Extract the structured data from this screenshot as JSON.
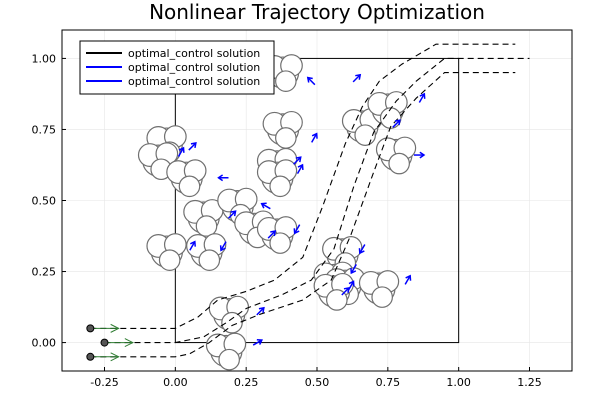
{
  "chart_data": {
    "type": "line",
    "title": "Nonlinear Trajectory Optimization",
    "xlim": [
      -0.4,
      1.4
    ],
    "ylim": [
      -0.1,
      1.1
    ],
    "x_ticks": [
      -0.25,
      0.0,
      0.25,
      0.5,
      0.75,
      1.0,
      1.25
    ],
    "x_tick_labels": [
      "-0.25",
      "0.00",
      "0.25",
      "0.50",
      "0.75",
      "1.00",
      "1.25"
    ],
    "y_ticks": [
      0.0,
      0.25,
      0.5,
      0.75,
      1.0
    ],
    "y_tick_labels": [
      "0.00",
      "0.25",
      "0.50",
      "0.75",
      "1.00"
    ],
    "grid": true,
    "legend_position": "top-left",
    "box": [
      [
        0,
        0
      ],
      [
        1,
        1
      ]
    ],
    "series": [
      {
        "name": "optimal_control solution",
        "color": "#000000",
        "x": [],
        "y": []
      },
      {
        "name": "optimal_control solution",
        "color": "#0000ff",
        "x": [],
        "y": []
      },
      {
        "name": "optimal_control solution",
        "color": "#0000ff",
        "x": [],
        "y": []
      }
    ],
    "trajectories": [
      {
        "x": [
          -0.3,
          0.0,
          0.05,
          0.12,
          0.2,
          0.3,
          0.45,
          0.55,
          0.62,
          0.7,
          0.76,
          0.85,
          0.95,
          1.2
        ],
        "y": [
          -0.05,
          -0.05,
          -0.04,
          0.0,
          0.06,
          0.1,
          0.15,
          0.22,
          0.38,
          0.6,
          0.76,
          0.86,
          0.95,
          0.95
        ]
      },
      {
        "x": [
          -0.25,
          0.0,
          0.1,
          0.18,
          0.25,
          0.38,
          0.48,
          0.56,
          0.63,
          0.7,
          0.78,
          0.85,
          0.95,
          1.25
        ],
        "y": [
          0.0,
          0.0,
          0.02,
          0.07,
          0.12,
          0.17,
          0.22,
          0.33,
          0.55,
          0.74,
          0.85,
          0.92,
          1.0,
          1.0
        ]
      },
      {
        "x": [
          -0.3,
          0.0,
          0.08,
          0.15,
          0.25,
          0.35,
          0.45,
          0.52,
          0.6,
          0.66,
          0.72,
          0.8,
          0.92,
          1.2
        ],
        "y": [
          0.05,
          0.05,
          0.09,
          0.15,
          0.18,
          0.22,
          0.3,
          0.48,
          0.7,
          0.83,
          0.92,
          0.98,
          1.05,
          1.05
        ]
      }
    ],
    "start_points": [
      {
        "x": -0.3,
        "y": 0.05
      },
      {
        "x": -0.25,
        "y": 0.0
      },
      {
        "x": -0.3,
        "y": -0.05
      }
    ],
    "start_arrow_length": 0.1,
    "obstacles": [
      {
        "x": 0.38,
        "y": 0.95
      },
      {
        "x": -0.03,
        "y": 0.7
      },
      {
        "x": -0.06,
        "y": 0.64
      },
      {
        "x": 0.04,
        "y": 0.58
      },
      {
        "x": 0.38,
        "y": 0.75
      },
      {
        "x": 0.36,
        "y": 0.62
      },
      {
        "x": 0.36,
        "y": 0.58
      },
      {
        "x": 0.1,
        "y": 0.44
      },
      {
        "x": 0.22,
        "y": 0.48
      },
      {
        "x": 0.28,
        "y": 0.4
      },
      {
        "x": 0.36,
        "y": 0.38
      },
      {
        "x": -0.03,
        "y": 0.32
      },
      {
        "x": 0.11,
        "y": 0.32
      },
      {
        "x": 0.59,
        "y": 0.31
      },
      {
        "x": 0.56,
        "y": 0.22
      },
      {
        "x": 0.6,
        "y": 0.2
      },
      {
        "x": 0.56,
        "y": 0.18
      },
      {
        "x": 0.72,
        "y": 0.19
      },
      {
        "x": 0.66,
        "y": 0.76
      },
      {
        "x": 0.75,
        "y": 0.82
      },
      {
        "x": 0.78,
        "y": 0.66
      },
      {
        "x": 0.19,
        "y": 0.1
      },
      {
        "x": 0.18,
        "y": -0.03
      }
    ],
    "obstacle_velocities": [
      {
        "x": 0.48,
        "y": 0.92,
        "angle": 135
      },
      {
        "x": 0.64,
        "y": 0.93,
        "angle": 45
      },
      {
        "x": 0.87,
        "y": 0.86,
        "angle": 60
      },
      {
        "x": 0.78,
        "y": 0.77,
        "angle": 45
      },
      {
        "x": 0.49,
        "y": 0.72,
        "angle": 60
      },
      {
        "x": 0.86,
        "y": 0.66,
        "angle": 0
      },
      {
        "x": 0.02,
        "y": 0.67,
        "angle": 60
      },
      {
        "x": 0.06,
        "y": 0.69,
        "angle": 45
      },
      {
        "x": 0.43,
        "y": 0.64,
        "angle": 45
      },
      {
        "x": 0.44,
        "y": 0.61,
        "angle": 60
      },
      {
        "x": 0.17,
        "y": 0.58,
        "angle": 180
      },
      {
        "x": 0.32,
        "y": 0.48,
        "angle": 150
      },
      {
        "x": 0.2,
        "y": 0.45,
        "angle": 45
      },
      {
        "x": 0.43,
        "y": 0.4,
        "angle": 240
      },
      {
        "x": 0.34,
        "y": 0.38,
        "angle": 45
      },
      {
        "x": 0.06,
        "y": 0.34,
        "angle": 60
      },
      {
        "x": 0.17,
        "y": 0.34,
        "angle": 240
      },
      {
        "x": 0.66,
        "y": 0.33,
        "angle": 240
      },
      {
        "x": 0.63,
        "y": 0.26,
        "angle": 240
      },
      {
        "x": 0.82,
        "y": 0.22,
        "angle": 60
      },
      {
        "x": 0.62,
        "y": 0.2,
        "angle": 60
      },
      {
        "x": 0.6,
        "y": 0.18,
        "angle": 45
      },
      {
        "x": 0.3,
        "y": 0.11,
        "angle": 45
      },
      {
        "x": 0.29,
        "y": 0.0,
        "angle": 30
      }
    ]
  }
}
